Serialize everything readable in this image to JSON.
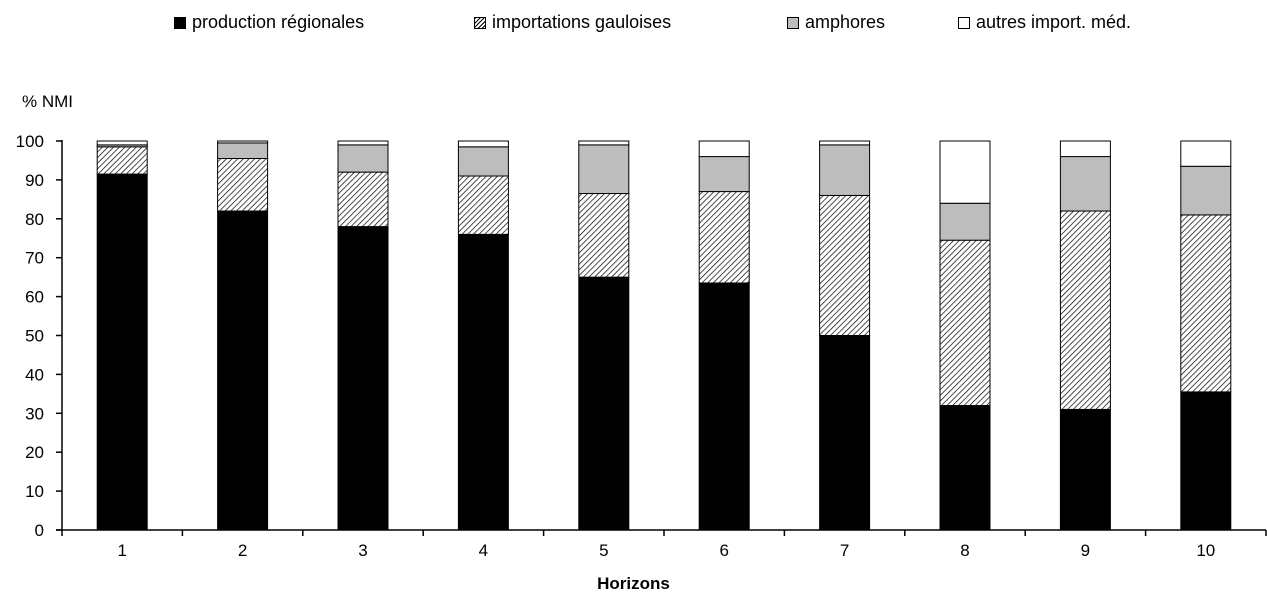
{
  "chart_data": {
    "type": "bar",
    "stacked": true,
    "title": "",
    "xlabel": "Horizons",
    "ylabel": "% NMI",
    "ylim": [
      0,
      100
    ],
    "yticks": [
      0,
      10,
      20,
      30,
      40,
      50,
      60,
      70,
      80,
      90,
      100
    ],
    "grid": false,
    "legend_position": "top",
    "categories": [
      "1",
      "2",
      "3",
      "4",
      "5",
      "6",
      "7",
      "8",
      "9",
      "10"
    ],
    "series": [
      {
        "name": "production régionales",
        "color": "#000000",
        "fill": "solid",
        "values": [
          91.5,
          82,
          78,
          76,
          65,
          63.5,
          50,
          32,
          31,
          35.5
        ]
      },
      {
        "name": "importations gauloises",
        "color": "#000000",
        "fill": "hatched",
        "values": [
          7,
          13.5,
          14,
          15,
          21.5,
          23.5,
          36,
          42.5,
          51,
          45.5
        ]
      },
      {
        "name": "amphores",
        "color": "#bdbdbd",
        "fill": "solid",
        "values": [
          0.5,
          4,
          7,
          7.5,
          12.5,
          9,
          13,
          9.5,
          14,
          12.5
        ]
      },
      {
        "name": "autres import. méd.",
        "color": "#ffffff",
        "fill": "solid",
        "values": [
          1,
          0.5,
          1,
          1.5,
          1,
          4,
          1,
          16,
          4,
          6.5
        ]
      }
    ]
  }
}
